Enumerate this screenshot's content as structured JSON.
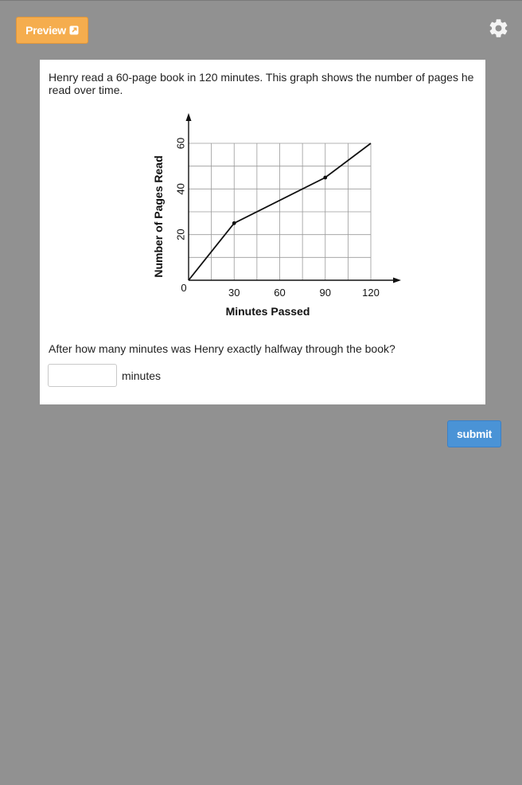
{
  "header": {
    "preview_label": "Preview",
    "preview_icon": "external-link-icon",
    "settings_icon": "gear-icon"
  },
  "question": {
    "prompt": "Henry read a 60-page book in 120 minutes. This graph shows the number of pages he read over time.",
    "ask": "After how many minutes was Henry exactly halfway through the book?",
    "answer_value": "",
    "answer_placeholder": "",
    "unit": "minutes"
  },
  "submit_label": "submit",
  "colors": {
    "page_bg": "#919191",
    "preview": "#f5ad4e",
    "submit": "#4a93d6"
  },
  "chart_data": {
    "type": "line",
    "xlabel": "Minutes Passed",
    "ylabel": "Number of Pages Read",
    "xlim": [
      0,
      120
    ],
    "ylim": [
      0,
      60
    ],
    "x_ticks": [
      30,
      60,
      90,
      120
    ],
    "y_ticks": [
      20,
      40,
      60
    ],
    "origin_label": "0",
    "grid": true,
    "x_minor_step": 15,
    "y_minor_step": 10,
    "series": [
      {
        "x": [
          0,
          30,
          90,
          120
        ],
        "y": [
          0,
          25,
          45,
          60
        ]
      }
    ],
    "marked_points": [
      [
        30,
        25
      ],
      [
        90,
        45
      ]
    ]
  }
}
